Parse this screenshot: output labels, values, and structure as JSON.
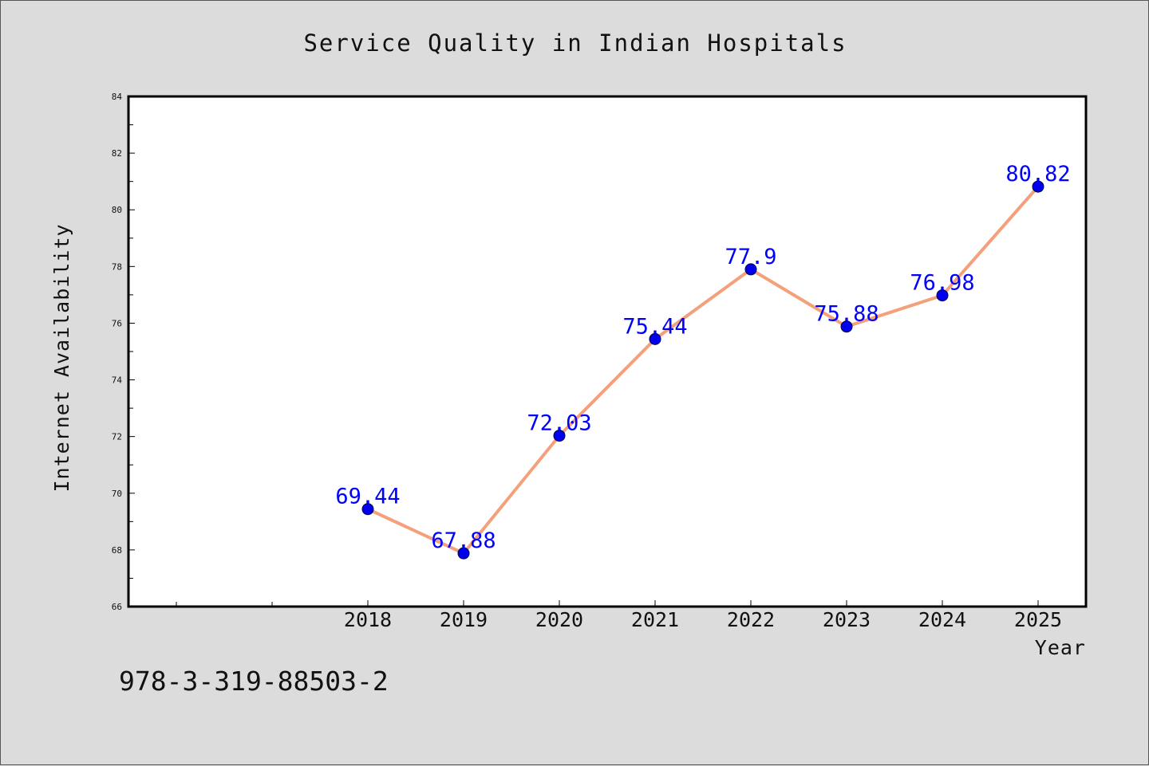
{
  "chart_data": {
    "type": "line",
    "title": "Service Quality in Indian Hospitals",
    "xlabel": "Year",
    "ylabel": "Internet Availability",
    "x": [
      "2018",
      "2019",
      "2020",
      "2021",
      "2022",
      "2023",
      "2024",
      "2025"
    ],
    "series": [
      {
        "values": [
          69.44,
          67.88,
          72.03,
          75.44,
          77.9,
          75.88,
          76.98,
          80.82
        ],
        "labels": [
          "69.44",
          "67.88",
          "72.03",
          "75.44",
          "77.9",
          "75.88",
          "76.98",
          "80.82"
        ],
        "line_color": "#f4a07a",
        "marker_color": "#0000ee"
      }
    ],
    "ylim": [
      66,
      84
    ],
    "yticks": [
      "66",
      "68",
      "70",
      "72",
      "74",
      "76",
      "78",
      "80",
      "82",
      "84"
    ],
    "grid": false,
    "data_label_color": "#0000ff"
  },
  "caption": "978-3-319-88503-2"
}
